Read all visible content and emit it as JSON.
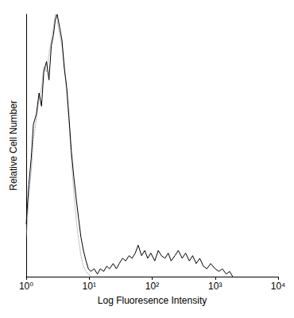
{
  "chart_data": {
    "type": "line",
    "x_label": "Log Fluoresence Intensity",
    "y_label": "Relative Cell Number",
    "log": "x",
    "grid": false,
    "tick_labels": "x",
    "xlim": [
      1,
      10000
    ],
    "xticks": [
      {
        "value": 1,
        "label": "10⁰"
      },
      {
        "value": 10,
        "label": "10¹"
      },
      {
        "value": 100,
        "label": "10²"
      },
      {
        "value": 1000,
        "label": "10³"
      },
      {
        "value": 10000,
        "label": "10⁴"
      }
    ],
    "ylim": [
      0,
      100
    ],
    "x": [
      1,
      1.1,
      1.2,
      1.3,
      1.45,
      1.6,
      1.75,
      1.9,
      2.1,
      2.3,
      2.5,
      2.7,
      2.9,
      3.1,
      3.4,
      3.7,
      4,
      4.4,
      4.8,
      5.2,
      5.7,
      6.2,
      6.8,
      7.4,
      8.1,
      8.9,
      9.7,
      10.6,
      12,
      13.5,
      15,
      17,
      19,
      21,
      24,
      27,
      30,
      34,
      38,
      43,
      48,
      54,
      60,
      68,
      76,
      85,
      95,
      110,
      125,
      140,
      160,
      180,
      200,
      230,
      260,
      300,
      340,
      390,
      440,
      500,
      570,
      650,
      740,
      850,
      1000,
      1150,
      1300,
      1500,
      1700,
      1900
    ],
    "series": [
      {
        "color": "#888888",
        "line_style": "dotted",
        "values": [
          15,
          30,
          40,
          52,
          60,
          68,
          72,
          80,
          78,
          85,
          90,
          95,
          100,
          98,
          92,
          88,
          82,
          70,
          58,
          45,
          32,
          22,
          14,
          8,
          4,
          2,
          1,
          0,
          0,
          0,
          0,
          0,
          0,
          0,
          0,
          0,
          0,
          0,
          0,
          0,
          0,
          0,
          0,
          0,
          0,
          0,
          0,
          0,
          0,
          0,
          0,
          0,
          0,
          0,
          0,
          0,
          0,
          0,
          0,
          0,
          0,
          0,
          0,
          0,
          0,
          0,
          0,
          0,
          0,
          0
        ]
      },
      {
        "color": "#000000",
        "line_style": "solid",
        "values": [
          20,
          35,
          45,
          58,
          62,
          70,
          65,
          78,
          82,
          75,
          88,
          92,
          98,
          100,
          95,
          90,
          80,
          72,
          60,
          48,
          38,
          30,
          22,
          15,
          10,
          6,
          3,
          2,
          3,
          1,
          3,
          2,
          4,
          3,
          5,
          3,
          5,
          7,
          6,
          8,
          7,
          9,
          12,
          8,
          10,
          7,
          9,
          6,
          10,
          8,
          7,
          9,
          6,
          8,
          10,
          7,
          9,
          6,
          8,
          5,
          7,
          4,
          3,
          5,
          3,
          2,
          3,
          1,
          2,
          0
        ]
      }
    ]
  }
}
